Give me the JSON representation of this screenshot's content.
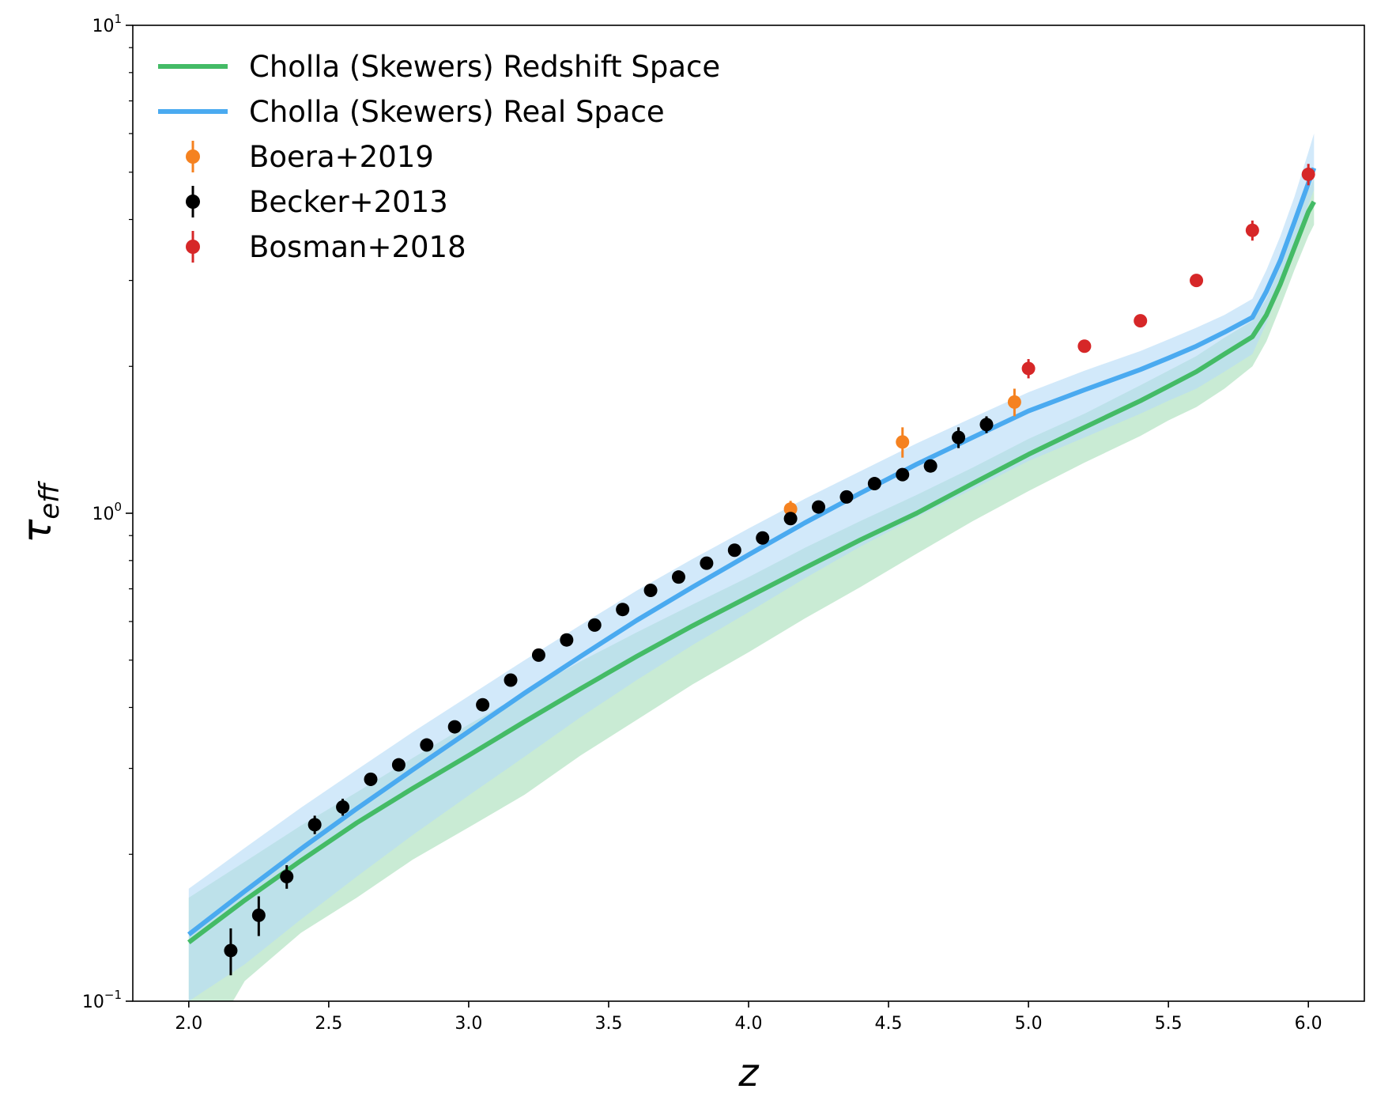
{
  "chart_data": {
    "type": "line",
    "xlabel": "z",
    "ylabel": "τ_eff",
    "ylabel_main": "τ",
    "ylabel_sub": "eff",
    "xlim": [
      1.8,
      6.2
    ],
    "ylim": [
      0.1,
      10
    ],
    "yscale": "log",
    "xticks": [
      {
        "value": 2.0,
        "label": "2.0"
      },
      {
        "value": 2.5,
        "label": "2.5"
      },
      {
        "value": 3.0,
        "label": "3.0"
      },
      {
        "value": 3.5,
        "label": "3.5"
      },
      {
        "value": 4.0,
        "label": "4.0"
      },
      {
        "value": 4.5,
        "label": "4.5"
      },
      {
        "value": 5.0,
        "label": "5.0"
      },
      {
        "value": 5.5,
        "label": "5.5"
      },
      {
        "value": 6.0,
        "label": "6.0"
      }
    ],
    "yticks": [
      {
        "value": 0.1,
        "base": "10",
        "exp": "−1"
      },
      {
        "value": 1,
        "base": "10",
        "exp": "0"
      },
      {
        "value": 10,
        "base": "10",
        "exp": "1"
      }
    ],
    "legend_position": "top-left",
    "series": [
      {
        "name": "Cholla (Skewers) Redshift Space",
        "kind": "line_band",
        "color": "#44bb66",
        "band_color": "#a8dfba",
        "x": [
          2.0,
          2.2,
          2.4,
          2.6,
          2.8,
          3.0,
          3.2,
          3.4,
          3.6,
          3.8,
          4.0,
          4.2,
          4.4,
          4.6,
          4.8,
          5.0,
          5.2,
          5.4,
          5.5,
          5.6,
          5.7,
          5.8,
          5.85,
          5.9,
          5.95,
          6.0,
          6.02
        ],
        "y": [
          0.132,
          0.161,
          0.194,
          0.232,
          0.273,
          0.319,
          0.374,
          0.437,
          0.509,
          0.588,
          0.674,
          0.772,
          0.882,
          1.0,
          1.15,
          1.32,
          1.5,
          1.7,
          1.82,
          1.95,
          2.12,
          2.3,
          2.55,
          2.95,
          3.5,
          4.15,
          4.35
        ],
        "y_low": [
          0.07,
          0.11,
          0.138,
          0.163,
          0.195,
          0.227,
          0.265,
          0.319,
          0.377,
          0.446,
          0.519,
          0.608,
          0.706,
          0.826,
          0.963,
          1.11,
          1.27,
          1.44,
          1.55,
          1.65,
          1.8,
          2.0,
          2.25,
          2.65,
          3.15,
          3.7,
          3.9
        ],
        "y_high": [
          0.163,
          0.193,
          0.229,
          0.268,
          0.315,
          0.369,
          0.429,
          0.497,
          0.57,
          0.65,
          0.74,
          0.849,
          0.964,
          1.09,
          1.24,
          1.42,
          1.6,
          1.83,
          1.96,
          2.1,
          2.29,
          2.48,
          2.75,
          3.2,
          3.8,
          4.6,
          4.85
        ]
      },
      {
        "name": "Cholla (Skewers) Real Space",
        "kind": "line_band",
        "color": "#4aaaf0",
        "band_color": "#b6dcf7",
        "x": [
          2.0,
          2.2,
          2.4,
          2.6,
          2.8,
          3.0,
          3.2,
          3.4,
          3.6,
          3.8,
          4.0,
          4.2,
          4.4,
          4.6,
          4.8,
          5.0,
          5.2,
          5.4,
          5.5,
          5.6,
          5.7,
          5.8,
          5.85,
          5.9,
          5.95,
          6.0,
          6.02
        ],
        "y": [
          0.137,
          0.168,
          0.205,
          0.248,
          0.298,
          0.357,
          0.428,
          0.509,
          0.603,
          0.706,
          0.822,
          0.955,
          1.1,
          1.26,
          1.43,
          1.62,
          1.79,
          1.97,
          2.08,
          2.2,
          2.35,
          2.52,
          2.85,
          3.3,
          3.95,
          4.75,
          5.1
        ],
        "y_low": [
          0.1,
          0.119,
          0.147,
          0.18,
          0.219,
          0.264,
          0.317,
          0.382,
          0.455,
          0.537,
          0.627,
          0.735,
          0.855,
          0.982,
          1.12,
          1.28,
          1.43,
          1.6,
          1.7,
          1.8,
          1.95,
          2.12,
          2.45,
          2.9,
          3.55,
          4.3,
          4.6
        ],
        "y_high": [
          0.17,
          0.206,
          0.249,
          0.298,
          0.356,
          0.422,
          0.5,
          0.59,
          0.694,
          0.806,
          0.931,
          1.07,
          1.22,
          1.39,
          1.57,
          1.77,
          1.96,
          2.15,
          2.27,
          2.4,
          2.55,
          2.75,
          3.15,
          3.7,
          4.45,
          5.5,
          6.0
        ]
      },
      {
        "name": "Boera+2019",
        "kind": "errorbar",
        "color": "#f58220",
        "x": [
          4.15,
          4.55,
          4.95
        ],
        "y": [
          1.02,
          1.4,
          1.69
        ],
        "yerr": [
          0.04,
          0.1,
          0.11
        ]
      },
      {
        "name": "Becker+2013",
        "kind": "errorbar",
        "color": "#000000",
        "x": [
          2.15,
          2.25,
          2.35,
          2.45,
          2.55,
          2.65,
          2.75,
          2.85,
          2.95,
          3.05,
          3.15,
          3.25,
          3.35,
          3.45,
          3.55,
          3.65,
          3.75,
          3.85,
          3.95,
          4.05,
          4.15,
          4.25,
          4.35,
          4.45,
          4.55,
          4.65,
          4.75,
          4.85
        ],
        "y": [
          0.127,
          0.15,
          0.18,
          0.23,
          0.25,
          0.285,
          0.305,
          0.335,
          0.365,
          0.405,
          0.455,
          0.512,
          0.55,
          0.59,
          0.635,
          0.695,
          0.74,
          0.79,
          0.84,
          0.89,
          0.975,
          1.03,
          1.08,
          1.15,
          1.2,
          1.25,
          1.43,
          1.52
        ],
        "yerr": [
          0.014,
          0.014,
          0.01,
          0.01,
          0.01,
          0.009,
          0.009,
          0.009,
          0.008,
          0.008,
          0.008,
          0.008,
          0.008,
          0.008,
          0.009,
          0.009,
          0.01,
          0.01,
          0.01,
          0.01,
          0.012,
          0.012,
          0.015,
          0.015,
          0.018,
          0.018,
          0.07,
          0.06
        ]
      },
      {
        "name": "Bosman+2018",
        "kind": "errorbar",
        "color": "#d62728",
        "x": [
          5.0,
          5.2,
          5.4,
          5.6,
          5.8,
          6.0
        ],
        "y": [
          1.98,
          2.2,
          2.48,
          3.0,
          3.8,
          4.95
        ],
        "yerr": [
          0.09,
          0.06,
          0.06,
          0.06,
          0.18,
          0.25
        ]
      }
    ]
  }
}
